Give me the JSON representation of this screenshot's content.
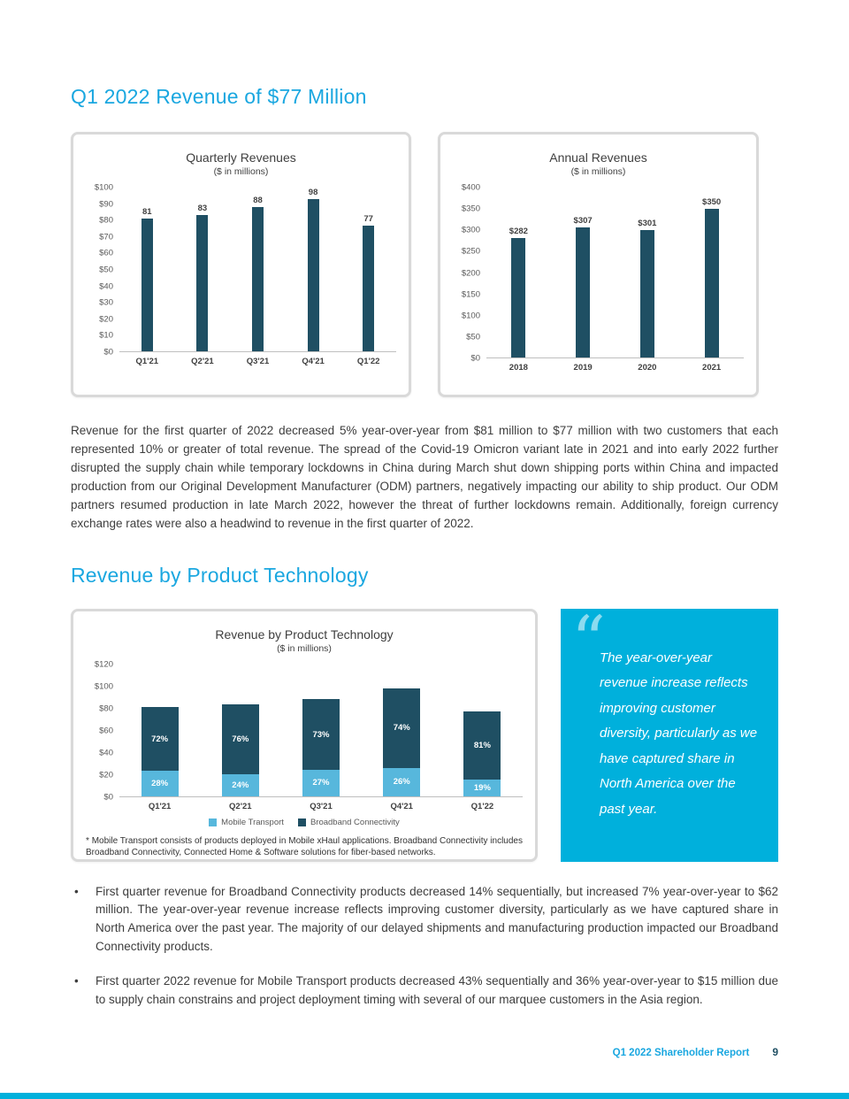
{
  "colors": {
    "accent": "#1aa7e0",
    "quote_box": "#00b0dc",
    "bar_dark": "#1f4f63",
    "bar_light": "#57b7dc"
  },
  "page": {
    "heading1": "Q1 2022 Revenue of $77 Million",
    "heading2": "Revenue by Product Technology",
    "paragraph1": "Revenue for the first quarter of 2022 decreased 5% year-over-year from $81 million to $77 million with two customers that each represented 10% or greater of total revenue. The spread of the Covid-19 Omicron variant late in 2021 and into early 2022 further disrupted the supply chain while temporary lockdowns in China during March shut down shipping ports within China and impacted production from our Original Development Manufacturer (ODM) partners, negatively impacting our ability to ship product. Our ODM partners resumed production in late March 2022, however the threat of further lockdowns remain. Additionally, foreign currency exchange rates were also a headwind to revenue in the first quarter of 2022.",
    "quote_mark": "“",
    "quote": "The year-over-year revenue increase reflects improving customer diversity, particularly as we have captured share in North America over the past year.",
    "footnote": "* Mobile Transport consists of products deployed in Mobile xHaul applications. Broadband Connectivity includes Broadband Connectivity, Connected Home & Software solutions for fiber-based networks.",
    "bullets": [
      "First quarter revenue for Broadband Connectivity products decreased 14% sequentially, but increased 7% year-over-year to $62 million. The year-over-year revenue increase reflects improving customer diversity, particularly as we have captured share in North America over the past year. The majority of our delayed shipments and manufacturing production impacted our Broadband Connectivity products.",
      "First quarter 2022 revenue for Mobile Transport products decreased 43% sequentially and 36% year-over-year to $15 million due to supply chain constrains and project deployment timing with several of our marquee customers in the Asia region."
    ],
    "bullet_char": "•",
    "footer": {
      "label": "Q1 2022 Shareholder Report",
      "page_number": "9"
    }
  },
  "chart_data": [
    {
      "type": "bar",
      "title": "Quarterly Revenues",
      "subtitle": "($ in millions)",
      "categories": [
        "Q1'21",
        "Q2'21",
        "Q3'21",
        "Q4'21",
        "Q1'22"
      ],
      "values": [
        81,
        83,
        88,
        98,
        77
      ],
      "labels": [
        "81",
        "83",
        "88",
        "98",
        "77"
      ],
      "ylim": [
        0,
        100
      ],
      "yticks": [
        "$100",
        "$90",
        "$80",
        "$70",
        "$60",
        "$50",
        "$40",
        "$30",
        "$20",
        "$10",
        "$0"
      ],
      "bar_color": "#1f4f63",
      "grid": false,
      "legend": "none"
    },
    {
      "type": "bar",
      "title": "Annual Revenues",
      "subtitle": "($ in millions)",
      "categories": [
        "2018",
        "2019",
        "2020",
        "2021"
      ],
      "values": [
        282,
        307,
        301,
        350
      ],
      "labels": [
        "$282",
        "$307",
        "$301",
        "$350"
      ],
      "ylim": [
        0,
        400
      ],
      "yticks": [
        "$400",
        "$350",
        "$300",
        "$250",
        "$200",
        "$150",
        "$100",
        "$50",
        "$0"
      ],
      "bar_color": "#1f4f63",
      "grid": false,
      "legend": "none"
    },
    {
      "type": "bar",
      "stacked": true,
      "title": "Revenue by Product Technology",
      "subtitle": "($ in millions)",
      "categories": [
        "Q1'21",
        "Q2'21",
        "Q3'21",
        "Q4'21",
        "Q1'22"
      ],
      "series": [
        {
          "name": "Mobile Transport",
          "color": "#57b7dc",
          "values": [
            22.7,
            19.9,
            23.8,
            25.5,
            14.6
          ],
          "labels": [
            "28%",
            "24%",
            "27%",
            "26%",
            "19%"
          ]
        },
        {
          "name": "Broadband Connectivity",
          "color": "#1f4f63",
          "values": [
            58.3,
            63.1,
            64.2,
            72.5,
            62.4
          ],
          "labels": [
            "72%",
            "76%",
            "73%",
            "74%",
            "81%"
          ]
        }
      ],
      "totals": [
        81,
        83,
        88,
        98,
        77
      ],
      "ylim": [
        0,
        120
      ],
      "yticks": [
        "$120",
        "$100",
        "$80",
        "$60",
        "$40",
        "$20",
        "$0"
      ],
      "grid": false,
      "legend": "bottom"
    }
  ]
}
